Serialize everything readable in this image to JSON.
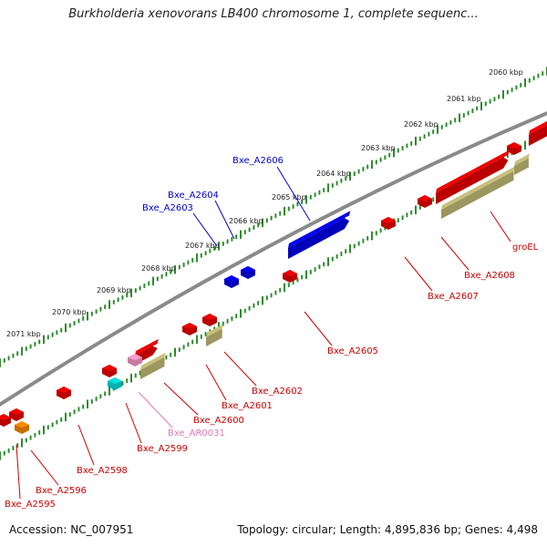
{
  "title": "Burkholderia xenovorans LB400 chromosome 1, complete sequenc...",
  "footer": {
    "accession": "Accession: NC_007951",
    "topology": "Topology: circular; Length: 4,895,836 bp; Genes: 4,498"
  },
  "colors": {
    "backbone": "#8a8a8a",
    "tick": "#2e8b2e",
    "forward_gene": "#0000ee",
    "reverse_gene": "#ee0000",
    "rna": "#ff9fcf",
    "pseudo_khaki": "#c8c07a",
    "cyan": "#00e0e0",
    "orange": "#ff8c00",
    "label_blue": "#0000cc",
    "label_red": "#cc0000",
    "label_pink": "#e07ab8"
  },
  "ruler_labels": [
    "2060 kbp",
    "2061 kbp",
    "2062 kbp",
    "2063 kbp",
    "2064 kbp",
    "2065 kbp",
    "2066 kbp",
    "2067 kbp",
    "2068 kbp",
    "2069 kbp",
    "2070 kbp",
    "2071 kbp"
  ],
  "gene_labels": [
    {
      "text": "Bxe_A2606",
      "color": "blue"
    },
    {
      "text": "Bxe_A2604",
      "color": "blue"
    },
    {
      "text": "Bxe_A2603",
      "color": "blue"
    },
    {
      "text": "groEL",
      "color": "red"
    },
    {
      "text": "Bxe_A2608",
      "color": "red"
    },
    {
      "text": "Bxe_A2607",
      "color": "red"
    },
    {
      "text": "Bxe_A2605",
      "color": "red"
    },
    {
      "text": "Bxe_A2602",
      "color": "red"
    },
    {
      "text": "Bxe_A2601",
      "color": "red"
    },
    {
      "text": "Bxe_A2600",
      "color": "red"
    },
    {
      "text": "Bxe_AR0031",
      "color": "pink"
    },
    {
      "text": "Bxe_A2599",
      "color": "red"
    },
    {
      "text": "Bxe_A2598",
      "color": "red"
    },
    {
      "text": "Bxe_A2596",
      "color": "red"
    },
    {
      "text": "Bxe_A2595",
      "color": "red"
    }
  ]
}
